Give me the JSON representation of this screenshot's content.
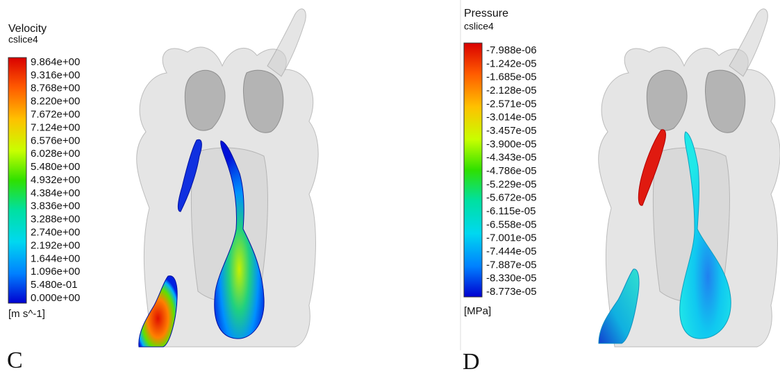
{
  "panels": [
    {
      "title": "Velocity",
      "subtitle": "cslice4",
      "labels": [
        "9.864e+00",
        "9.316e+00",
        "8.768e+00",
        "8.220e+00",
        "7.672e+00",
        "7.124e+00",
        "6.576e+00",
        "6.028e+00",
        "5.480e+00",
        "4.932e+00",
        "4.384e+00",
        "3.836e+00",
        "3.288e+00",
        "2.740e+00",
        "2.192e+00",
        "1.644e+00",
        "1.096e+00",
        "5.480e-01",
        "0.000e+00"
      ],
      "unit": "[m s^-1]",
      "letter": "C"
    },
    {
      "title": "Pressure",
      "subtitle": "cslice4",
      "labels": [
        "-7.988e-06",
        "-1.242e-05",
        "-1.685e-05",
        "-2.128e-05",
        "-2.571e-05",
        "-3.014e-05",
        "-3.457e-05",
        "-3.900e-05",
        "-4.343e-05",
        "-4.786e-05",
        "-5.229e-05",
        "-5.672e-05",
        "-6.115e-05",
        "-6.558e-05",
        "-7.001e-05",
        "-7.444e-05",
        "-7.887e-05",
        "-8.330e-05",
        "-8.773e-05"
      ],
      "unit": "[MPa]",
      "letter": "D"
    }
  ]
}
